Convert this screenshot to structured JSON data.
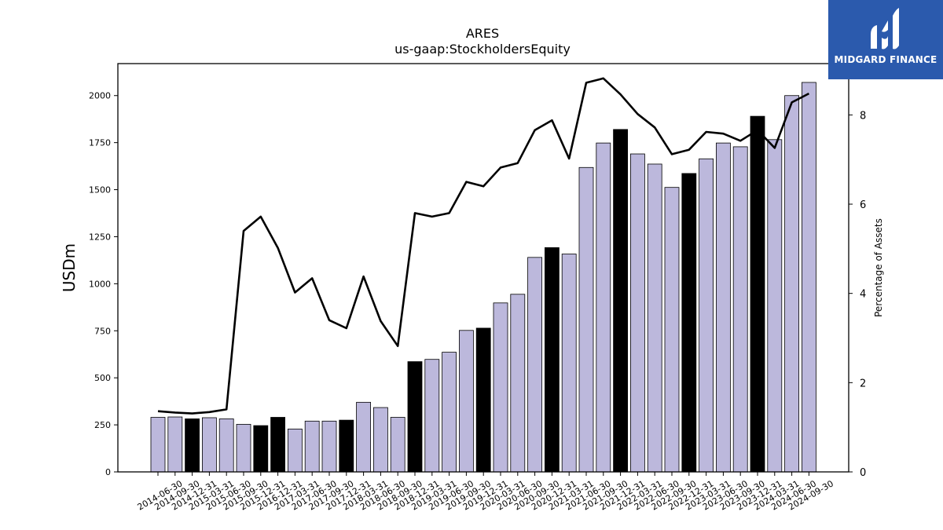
{
  "chart_data": {
    "type": "bar",
    "title": "ARES",
    "subtitle": "us-gaap:StockholdersEquity",
    "ylabel": "USDm",
    "y2label": "Percentage of Assets",
    "ylim": [
      0,
      2170
    ],
    "y2lim": [
      0,
      9.15
    ],
    "yticks": [
      0,
      250,
      500,
      750,
      1000,
      1250,
      1500,
      1750,
      2000
    ],
    "y2ticks": [
      0,
      2,
      4,
      6,
      8
    ],
    "categories": [
      "2014-06-30",
      "2014-09-30",
      "2014-12-31",
      "2015-03-31",
      "2015-06-30",
      "2015-09-30",
      "2015-12-31",
      "2016-12-31",
      "2017-03-31",
      "2017-06-30",
      "2017-09-30",
      "2017-12-31",
      "2018-03-31",
      "2018-06-30",
      "2018-09-30",
      "2018-12-31",
      "2019-03-31",
      "2019-06-30",
      "2019-09-30",
      "2019-12-31",
      "2020-03-31",
      "2020-06-30",
      "2020-09-30",
      "2020-12-31",
      "2021-03-31",
      "2021-06-30",
      "2021-09-30",
      "2021-12-31",
      "2022-03-31",
      "2022-06-30",
      "2022-09-30",
      "2022-12-31",
      "2023-03-31",
      "2023-06-30",
      "2023-09-30",
      "2023-12-31",
      "2024-03-31",
      "2024-06-30",
      "2024-09-30"
    ],
    "series": [
      {
        "kind": "bar",
        "axis": "left",
        "values": [
          290,
          292,
          282,
          288,
          282,
          253,
          246,
          290,
          228,
          270,
          270,
          275,
          370,
          342,
          290,
          586,
          598,
          636,
          752,
          764,
          898,
          944,
          1140,
          1192,
          1158,
          1618,
          1748,
          1820,
          1690,
          1636,
          1512,
          1586,
          1664,
          1748,
          1728,
          1890,
          1766,
          2000,
          2070
        ],
        "highlight": [
          false,
          false,
          true,
          false,
          false,
          false,
          true,
          true,
          false,
          false,
          false,
          true,
          false,
          false,
          false,
          true,
          false,
          false,
          false,
          true,
          false,
          false,
          false,
          true,
          false,
          false,
          false,
          true,
          false,
          false,
          false,
          true,
          false,
          false,
          false,
          true,
          false,
          false,
          false
        ]
      },
      {
        "kind": "line",
        "axis": "right",
        "values": [
          1.36,
          1.33,
          1.31,
          1.34,
          1.4,
          5.4,
          5.72,
          5.02,
          4.02,
          4.34,
          3.4,
          3.22,
          4.38,
          3.38,
          2.82,
          5.8,
          5.72,
          5.8,
          6.5,
          6.4,
          6.82,
          6.92,
          7.66,
          7.88,
          7.02,
          8.72,
          8.82,
          8.46,
          8.02,
          7.72,
          7.12,
          7.22,
          7.62,
          7.58,
          7.42,
          7.66,
          7.26,
          8.28,
          8.48
        ]
      }
    ],
    "colors": {
      "bar_fill": "#bcb8dc",
      "bar_highlight": "#000000",
      "bar_edge": "#000000",
      "line": "#000000",
      "axis": "#000000"
    },
    "grid": false
  },
  "logo": {
    "text": "MIDGARD FINANCE",
    "background": "#2b5aad",
    "icon": "midgard-logo-icon"
  }
}
